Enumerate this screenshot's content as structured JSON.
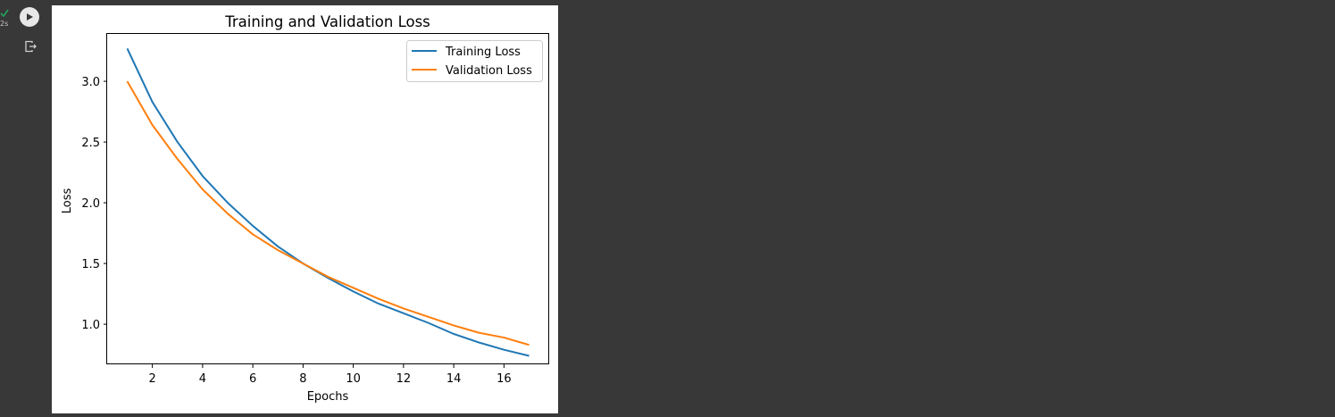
{
  "cell": {
    "status_time": "2s",
    "run_icon": "play-icon",
    "output_icon": "output-redirect-icon",
    "status_icon": "check-icon",
    "status_color": "#22a35a"
  },
  "chart_data": {
    "type": "line",
    "title": "Training and Validation Loss",
    "xlabel": "Epochs",
    "ylabel": "Loss",
    "x": [
      1,
      2,
      3,
      4,
      5,
      6,
      7,
      8,
      9,
      10,
      11,
      12,
      13,
      14,
      15,
      16,
      17
    ],
    "xlim": [
      0.2,
      17.8
    ],
    "ylim": [
      0.67,
      3.39
    ],
    "xticks": [
      2,
      4,
      6,
      8,
      10,
      12,
      14,
      16
    ],
    "yticks": [
      1.0,
      1.5,
      2.0,
      2.5,
      3.0
    ],
    "ytick_labels": [
      "1.0",
      "1.5",
      "2.0",
      "2.5",
      "3.0"
    ],
    "grid": false,
    "legend_position": "top-right",
    "series": [
      {
        "name": "Training Loss",
        "color": "#1f77b4",
        "values": [
          3.27,
          2.83,
          2.5,
          2.22,
          2.0,
          1.81,
          1.64,
          1.5,
          1.38,
          1.27,
          1.17,
          1.09,
          1.01,
          0.92,
          0.85,
          0.79,
          0.74
        ]
      },
      {
        "name": "Validation Loss",
        "color": "#ff7f0e",
        "values": [
          3.0,
          2.64,
          2.36,
          2.11,
          1.91,
          1.74,
          1.61,
          1.5,
          1.39,
          1.3,
          1.21,
          1.13,
          1.06,
          0.99,
          0.93,
          0.89,
          0.83
        ]
      }
    ]
  }
}
